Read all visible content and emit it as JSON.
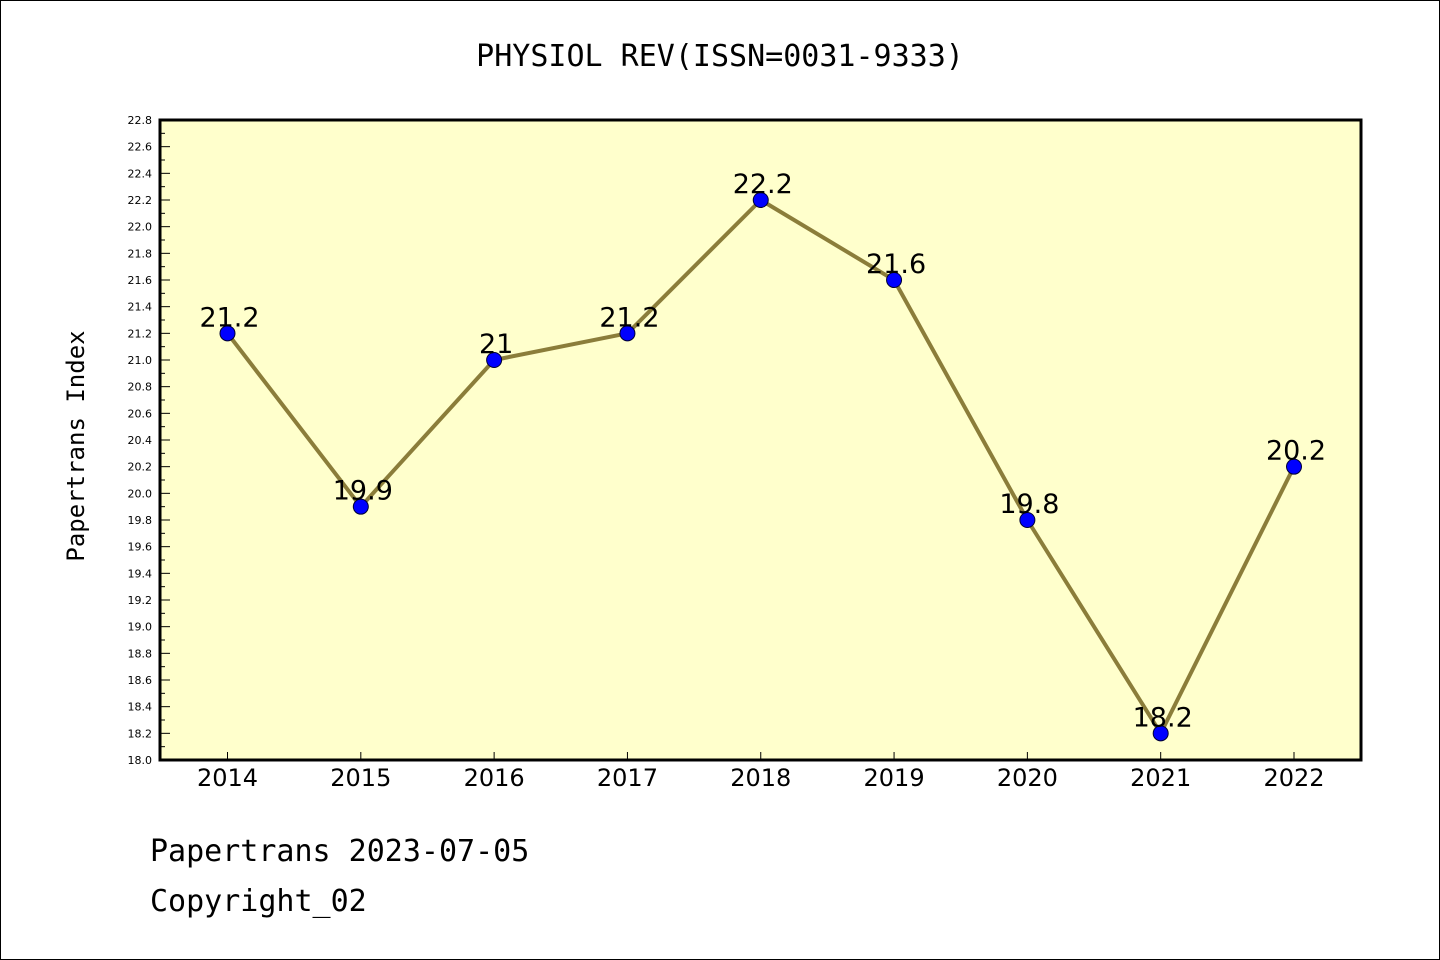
{
  "chart_data": {
    "type": "line",
    "title": "PHYSIOL REV(ISSN=0031-9333)",
    "ylabel": "Papertrans Index",
    "xlabel": "",
    "categories": [
      "2014",
      "2015",
      "2016",
      "2017",
      "2018",
      "2019",
      "2020",
      "2021",
      "2022"
    ],
    "values": [
      21.2,
      19.9,
      21,
      21.2,
      22.2,
      21.6,
      19.8,
      18.2,
      20.2
    ],
    "data_labels": [
      "21.2",
      "19.9",
      "21",
      "21.2",
      "22.2",
      "21.6",
      "19.8",
      "18.2",
      "20.2"
    ],
    "ylim": [
      18.0,
      22.8
    ],
    "yticks": [
      "18.0",
      "18.2",
      "18.4",
      "18.6",
      "18.8",
      "19.0",
      "19.2",
      "19.4",
      "19.6",
      "19.8",
      "20.0",
      "20.2",
      "20.4",
      "20.6",
      "20.8",
      "21.0",
      "21.2",
      "21.4",
      "21.6",
      "21.8",
      "22.0",
      "22.2",
      "22.4",
      "22.6",
      "22.8"
    ],
    "grid": false,
    "colors": {
      "plot_background": "#ffffcc",
      "line": "#8b7d3a",
      "marker": "#0000ff",
      "axis": "#000000"
    }
  },
  "footer": {
    "line1": "Papertrans 2023-07-05",
    "line2": "Copyright_02"
  }
}
